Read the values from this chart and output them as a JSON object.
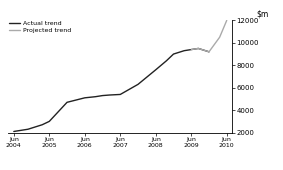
{
  "title": "",
  "ylim": [
    2000,
    12000
  ],
  "yticks": [
    2000,
    4000,
    6000,
    8000,
    10000,
    12000
  ],
  "actual_color": "#222222",
  "projected_color": "#aaaaaa",
  "legend_labels": [
    "Actual trend",
    "Projected trend"
  ],
  "background_color": "#ffffff",
  "actual_x": [
    0,
    0.4,
    0.8,
    1.0,
    1.5,
    2.0,
    2.3,
    2.5,
    2.7,
    3.0,
    3.5,
    4.0,
    4.3,
    4.5,
    4.8,
    5.0,
    5.2,
    5.5
  ],
  "actual_y": [
    2100,
    2300,
    2700,
    3000,
    4700,
    5100,
    5200,
    5300,
    5350,
    5400,
    6300,
    7600,
    8400,
    9000,
    9300,
    9400,
    9500,
    9200
  ],
  "projected_x": [
    5.0,
    5.2,
    5.5,
    5.8,
    6.0
  ],
  "projected_y": [
    9400,
    9500,
    9200,
    10500,
    12000
  ],
  "xtick_positions": [
    0,
    1,
    2,
    3,
    4,
    5,
    6
  ],
  "xtick_labels": [
    "Jun\n2004",
    "Jun\n2005",
    "Jun\n2006",
    "Jun\n2007",
    "Jun\n2008",
    "Jun\n2009",
    "Jun\n2010"
  ]
}
